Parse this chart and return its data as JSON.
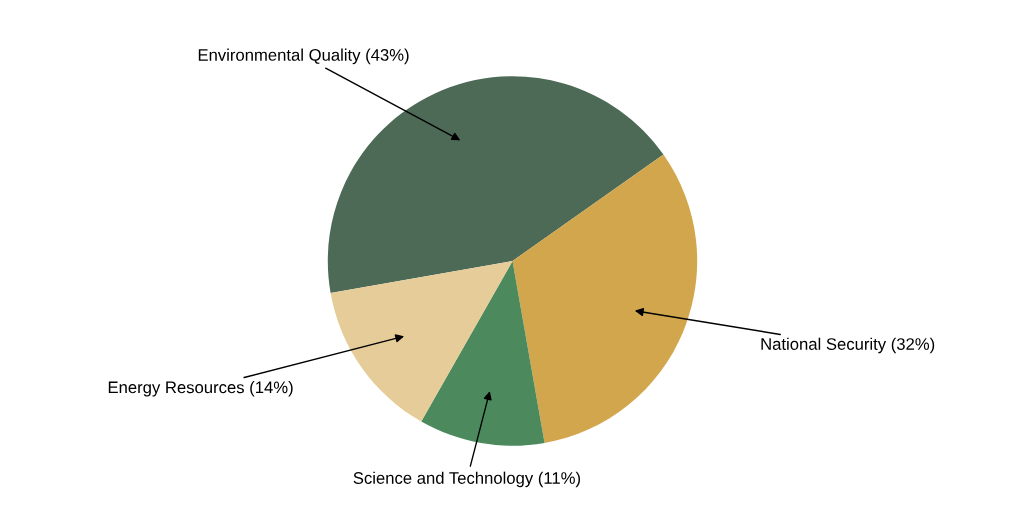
{
  "chart_data": {
    "type": "pie",
    "categories": [
      "Environmental Quality (43%)",
      "National Security (32%)",
      "Science and Technology (11%)",
      "Energy Resources (14%)"
    ],
    "values": [
      43,
      32,
      11,
      14
    ],
    "colors": [
      "#4d6a57",
      "#d2a64c",
      "#4c8a5e",
      "#e6cc98"
    ],
    "legend": false
  }
}
